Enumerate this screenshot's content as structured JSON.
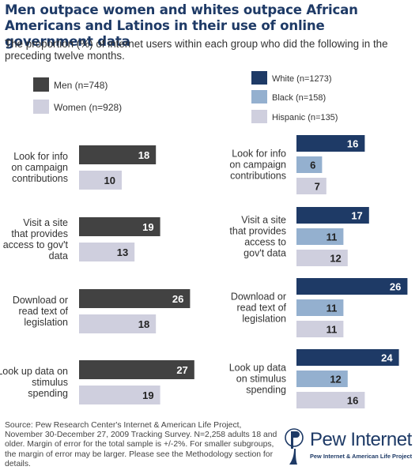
{
  "header": {
    "title": "Men outpace women and whites outpace African Americans and Latinos in their use of online government data",
    "subtitle": "The proportion (%) of internet users within each group who did the following in the preceding twelve months."
  },
  "footer": {
    "source": "Source: Pew Research Center's Internet & American Life Project, November 30-December 27, 2009 Tracking Survey. N=2,258 adults 18 and older. Margin of error for the total sample is +/-2%. For smaller subgroups, the margin of error may be larger. Please see the Methodology section for details."
  },
  "logo": {
    "word": "Pew Internet",
    "sub": "Pew Internet & American Life Project",
    "icon": "pew-figure-icon"
  },
  "colors": {
    "men": "#424242",
    "women": "#cfcfde",
    "white": "#1e3a66",
    "black": "#94b0cf",
    "hispanic": "#cfcfde",
    "title": "#1e3a66"
  },
  "chart_data": [
    {
      "type": "bar",
      "orientation": "horizontal",
      "categories": [
        "Look for info on campaign contributions",
        "Visit a site that provides access to gov't data",
        "Download or read text of legislation",
        "Look up data on stimulus spending"
      ],
      "series": [
        {
          "name": "Men (n=748)",
          "color": "#424242",
          "values": [
            18,
            19,
            26,
            27
          ]
        },
        {
          "name": "Women (n=928)",
          "color": "#cfcfde",
          "values": [
            10,
            13,
            18,
            19
          ]
        }
      ],
      "legend": "top-left"
    },
    {
      "type": "bar",
      "orientation": "horizontal",
      "categories": [
        "Look for info on campaign contributions",
        "Visit a site that provides access to gov't data",
        "Download or read text of legislation",
        "Look up data on stimulus spending"
      ],
      "series": [
        {
          "name": "White (n=1273)",
          "color": "#1e3a66",
          "values": [
            16,
            17,
            26,
            24
          ]
        },
        {
          "name": "Black (n=158)",
          "color": "#94b0cf",
          "values": [
            6,
            11,
            11,
            12
          ]
        },
        {
          "name": "Hispanic (n=135)",
          "color": "#cfcfde",
          "values": [
            7,
            12,
            11,
            16
          ]
        }
      ],
      "legend": "top-right"
    }
  ]
}
